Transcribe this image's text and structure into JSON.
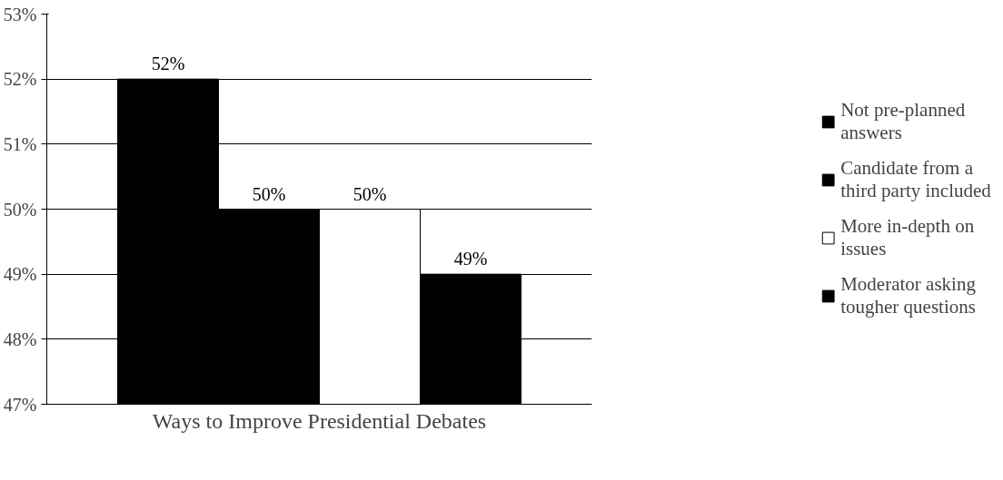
{
  "chart_data": {
    "type": "bar",
    "xlabel": "Ways to Improve Presidential Debates",
    "categories": [
      null
    ],
    "series": [
      {
        "name": "Not pre-planned answers",
        "color": "#000000",
        "values": [
          52
        ],
        "value_labels": [
          "52%"
        ]
      },
      {
        "name": "Candidate from a third party included",
        "color": "#000000",
        "values": [
          50
        ],
        "value_labels": [
          "50%"
        ]
      },
      {
        "name": "More in-depth on issues",
        "color": "#ffffff",
        "values": [
          50
        ],
        "value_labels": [
          "50%"
        ]
      },
      {
        "name": "Moderator asking tougher questions",
        "color": "#000000",
        "values": [
          49
        ],
        "value_labels": [
          "49%"
        ]
      }
    ],
    "ylim": [
      47,
      53
    ],
    "yticks": [
      {
        "value": 47,
        "label": "47%"
      },
      {
        "value": 48,
        "label": "48%"
      },
      {
        "value": 49,
        "label": "49%"
      },
      {
        "value": 50,
        "label": "50%"
      },
      {
        "value": 51,
        "label": "51%"
      },
      {
        "value": 52,
        "label": "52%"
      },
      {
        "value": 53,
        "label": "53%"
      }
    ],
    "grid": "y",
    "legend": "right"
  }
}
